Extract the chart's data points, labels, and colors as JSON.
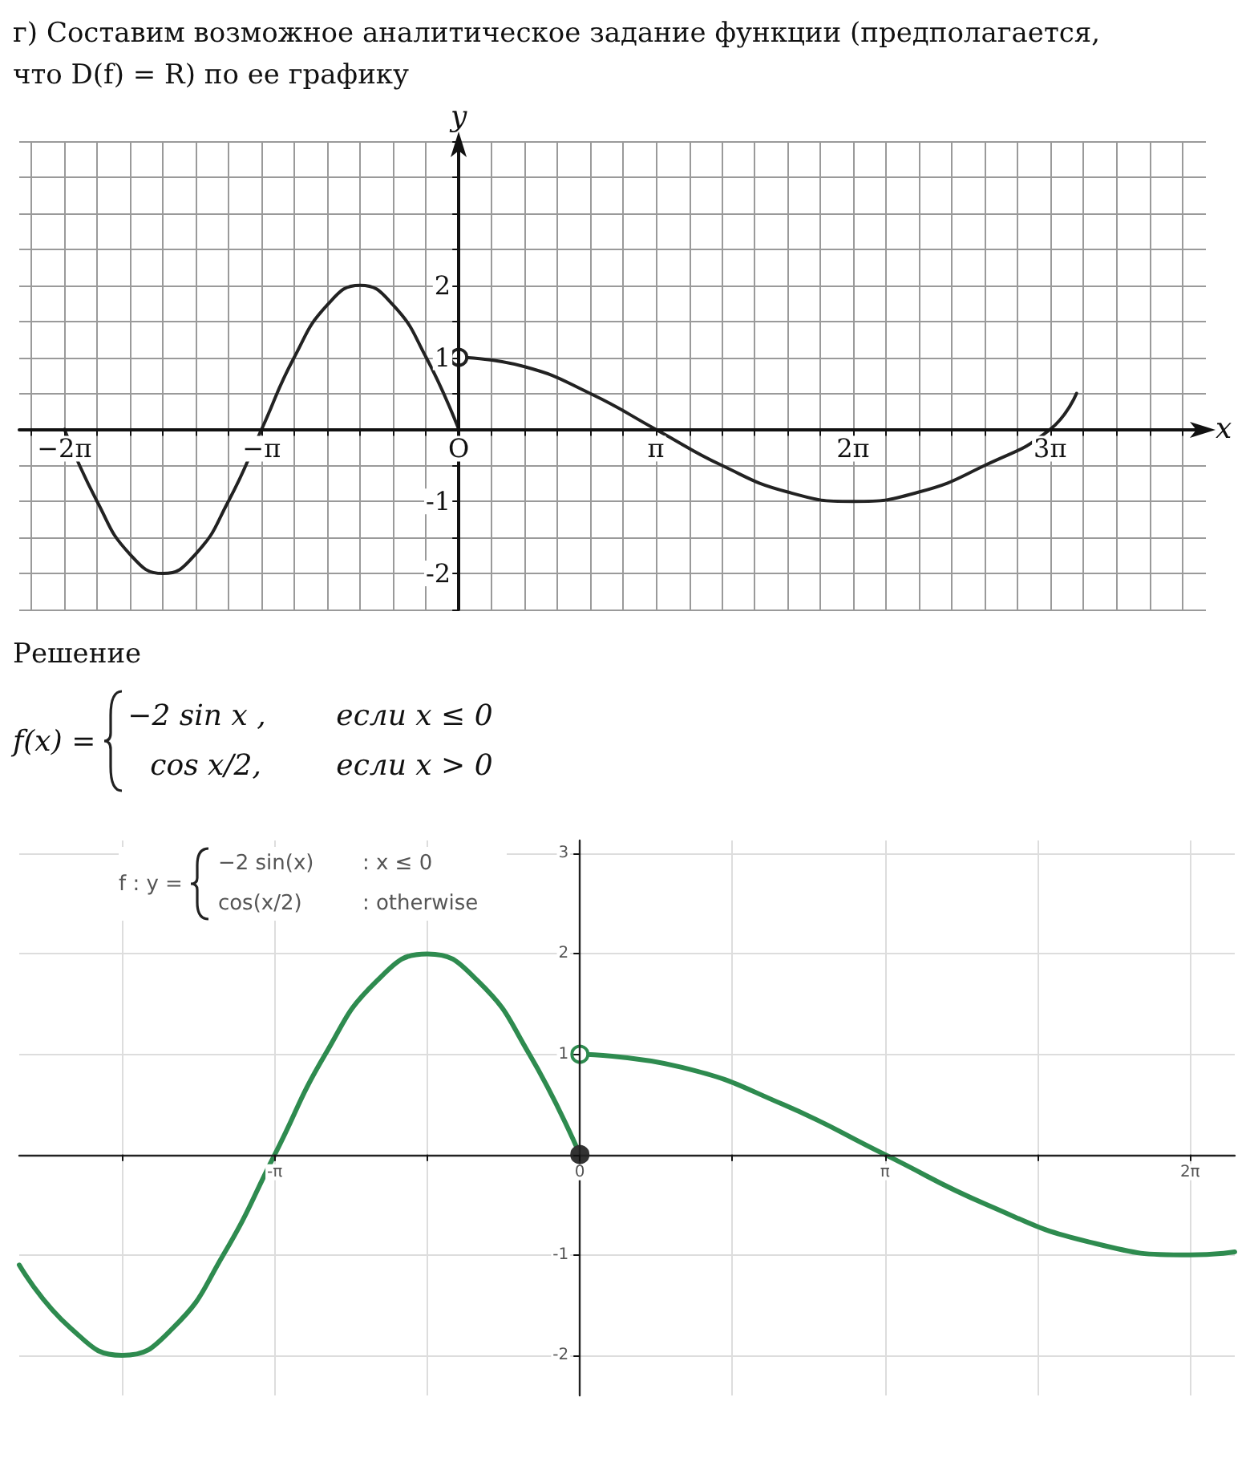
{
  "chart_data": [
    {
      "type": "line",
      "title": "г) Составим возможное аналитическое задание функции (предполагается, что D(f) = R) по ее графику",
      "xlabel": "x",
      "ylabel": "y",
      "xlim": [
        -7,
        11.9
      ],
      "ylim": [
        -2.5,
        4
      ],
      "xticks": [
        {
          "value": -6.81,
          "label": null
        },
        {
          "value": -6.28,
          "label": "−2π"
        },
        {
          "value": -5.76,
          "label": null
        },
        {
          "value": -5.24,
          "label": null
        },
        {
          "value": -4.71,
          "label": null
        },
        {
          "value": -4.19,
          "label": null
        },
        {
          "value": -3.67,
          "label": null
        },
        {
          "value": -3.14,
          "label": "−π"
        },
        {
          "value": -2.62,
          "label": null
        },
        {
          "value": -2.09,
          "label": null
        },
        {
          "value": -1.57,
          "label": null
        },
        {
          "value": -1.05,
          "label": null
        },
        {
          "value": -0.52,
          "label": null
        },
        {
          "value": 0,
          "label": "O"
        },
        {
          "value": 0.52,
          "label": null
        },
        {
          "value": 1.05,
          "label": null
        },
        {
          "value": 1.57,
          "label": null
        },
        {
          "value": 2.09,
          "label": null
        },
        {
          "value": 2.62,
          "label": null
        },
        {
          "value": 3.14,
          "label": "π"
        },
        {
          "value": 3.67,
          "label": null
        },
        {
          "value": 4.19,
          "label": null
        },
        {
          "value": 4.71,
          "label": null
        },
        {
          "value": 5.24,
          "label": null
        },
        {
          "value": 5.76,
          "label": null
        },
        {
          "value": 6.28,
          "label": "2π"
        },
        {
          "value": 6.81,
          "label": null
        },
        {
          "value": 7.33,
          "label": null
        },
        {
          "value": 7.85,
          "label": null
        },
        {
          "value": 8.38,
          "label": null
        },
        {
          "value": 8.9,
          "label": null
        },
        {
          "value": 9.42,
          "label": "3π"
        },
        {
          "value": 9.95,
          "label": null
        },
        {
          "value": 10.47,
          "label": null
        },
        {
          "value": 11,
          "label": null
        },
        {
          "value": 11.52,
          "label": null
        }
      ],
      "yticks": [
        {
          "value": -2.5,
          "label": null
        },
        -2,
        {
          "value": -1.5,
          "label": null
        },
        -1,
        {
          "value": -0.5,
          "label": null
        },
        {
          "value": 0,
          "label": null
        },
        {
          "value": 0.5,
          "label": null
        },
        1,
        {
          "value": 1.5,
          "label": null
        },
        2,
        {
          "value": 2.5,
          "label": null
        },
        {
          "value": 3,
          "label": null
        },
        {
          "value": 3.5,
          "label": null
        },
        {
          "value": 4,
          "label": null
        }
      ],
      "grid": true,
      "series": [
        {
          "color": "#222222",
          "x": [
            -6.28,
            -5.76,
            -5.24,
            -4.71,
            -4.19,
            -3.67,
            -3.14,
            -2.62,
            -2.09,
            -1.57,
            -1.05,
            -0.52,
            0
          ],
          "values": [
            0,
            -1,
            -1.73,
            -2,
            -1.73,
            -1,
            0,
            1,
            1.73,
            2,
            1.73,
            1,
            0
          ]
        },
        {
          "color": "#222222",
          "x": [
            0,
            1.05,
            2.09,
            3.14,
            4.19,
            5.24,
            6.28,
            7.33,
            8.38,
            9.42,
            9.84
          ],
          "values": [
            1,
            0.87,
            0.5,
            0,
            -0.5,
            -0.87,
            -1,
            -0.87,
            -0.5,
            0,
            0.5
          ]
        },
        {
          "type": "scatter",
          "marker": "circle",
          "color": "#ffffff",
          "x": [
            0
          ],
          "values": [
            1
          ]
        }
      ],
      "annotations": [
        "Решение",
        "f(x) =",
        "−2 sin x ,",
        "если x ≤ 0",
        "cos x/2,",
        "если x > 0"
      ]
    },
    {
      "type": "line",
      "xlim": [
        -5.77,
        6.74
      ],
      "ylim": [
        -2.4,
        3.13
      ],
      "xticks": [
        {
          "value": -4.71,
          "label": null
        },
        {
          "value": -3.14,
          "label": "-π"
        },
        {
          "value": -1.57,
          "label": null
        },
        0,
        {
          "value": 1.57,
          "label": null
        },
        {
          "value": 3.14,
          "label": "π"
        },
        {
          "value": 4.71,
          "label": null
        },
        {
          "value": 6.28,
          "label": "2π"
        }
      ],
      "yticks": [
        -2,
        -1,
        {
          "value": 0,
          "label": null
        },
        1,
        2,
        3
      ],
      "grid": true,
      "series": [
        {
          "color": "#2e8b4f",
          "x": [
            -5.77,
            -5.24,
            -4.71,
            -4.19,
            -3.67,
            -3.14,
            -2.62,
            -2.09,
            -1.57,
            -1.05,
            -0.52,
            0
          ],
          "values": [
            -1.1,
            -1.73,
            -2,
            -1.73,
            -1,
            0,
            1,
            1.73,
            2,
            1.73,
            1,
            0
          ]
        },
        {
          "color": "#2e8b4f",
          "x": [
            0,
            1.05,
            2.09,
            3.14,
            4.19,
            5.24,
            6.28,
            6.74
          ],
          "values": [
            1,
            0.87,
            0.5,
            0,
            -0.5,
            -0.87,
            -1,
            -0.97
          ]
        },
        {
          "type": "scatter",
          "marker": "circle",
          "color": "#ffffff",
          "x": [
            0
          ],
          "values": [
            1
          ]
        },
        {
          "type": "scatter",
          "marker": "circle",
          "color": "#333333",
          "x": [
            0
          ],
          "values": [
            0
          ]
        }
      ],
      "annotations": [
        "f : y =",
        "−2 sin(x)",
        ": x ≤ 0",
        "cos(x/2)",
        ": otherwise"
      ]
    }
  ]
}
